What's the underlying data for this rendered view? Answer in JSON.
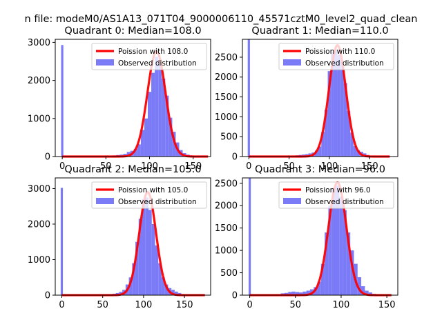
{
  "figure": {
    "suptitle": "n file: modeM0/AS1A13_071T04_9000006110_45571cztM0_level2_quad_clean"
  },
  "colors": {
    "histogram": "#7b7bf7",
    "poisson": "#ff0000"
  },
  "chart_data": [
    {
      "type": "bar",
      "title": "Quadrant 0: Median=108.0",
      "median": 108,
      "xlim": [
        -8,
        170
      ],
      "ylim": [
        0,
        3080
      ],
      "xticks": [
        0,
        50,
        100,
        150
      ],
      "yticks": [
        0,
        1000,
        2000,
        3000
      ],
      "zero_bin_count": 2930,
      "bin_width": 4,
      "bins": [
        {
          "x": 60,
          "y": 30
        },
        {
          "x": 64,
          "y": 40
        },
        {
          "x": 68,
          "y": 50
        },
        {
          "x": 72,
          "y": 70
        },
        {
          "x": 76,
          "y": 120
        },
        {
          "x": 80,
          "y": 150
        },
        {
          "x": 84,
          "y": 200
        },
        {
          "x": 88,
          "y": 320
        },
        {
          "x": 92,
          "y": 700
        },
        {
          "x": 96,
          "y": 1000
        },
        {
          "x": 100,
          "y": 1700
        },
        {
          "x": 104,
          "y": 2200
        },
        {
          "x": 108,
          "y": 2620
        },
        {
          "x": 112,
          "y": 2420
        },
        {
          "x": 116,
          "y": 2050
        },
        {
          "x": 120,
          "y": 1600
        },
        {
          "x": 124,
          "y": 1020
        },
        {
          "x": 128,
          "y": 650
        },
        {
          "x": 132,
          "y": 370
        },
        {
          "x": 136,
          "y": 170
        },
        {
          "x": 140,
          "y": 90
        },
        {
          "x": 144,
          "y": 50
        },
        {
          "x": 148,
          "y": 30
        },
        {
          "x": 152,
          "y": 20
        }
      ],
      "poisson_peak": 2760,
      "poisson_range": [
        0,
        167
      ],
      "legend": [
        "Poission with 108.0",
        "Observed distribution"
      ]
    },
    {
      "type": "bar",
      "title": "Quadrant 1: Median=110.0",
      "median": 110,
      "xlim": [
        -8,
        185
      ],
      "ylim": [
        0,
        2950
      ],
      "xticks": [
        0,
        50,
        100,
        150
      ],
      "yticks": [
        0,
        500,
        1000,
        1500,
        2000,
        2500
      ],
      "zero_bin_count": 2950,
      "bin_width": 4,
      "bins": [
        {
          "x": 56,
          "y": 20
        },
        {
          "x": 60,
          "y": 30
        },
        {
          "x": 64,
          "y": 40
        },
        {
          "x": 68,
          "y": 50
        },
        {
          "x": 72,
          "y": 60
        },
        {
          "x": 76,
          "y": 80
        },
        {
          "x": 80,
          "y": 100
        },
        {
          "x": 84,
          "y": 150
        },
        {
          "x": 88,
          "y": 250
        },
        {
          "x": 92,
          "y": 620
        },
        {
          "x": 96,
          "y": 1180
        },
        {
          "x": 100,
          "y": 2150
        },
        {
          "x": 104,
          "y": 2620
        },
        {
          "x": 108,
          "y": 2700
        },
        {
          "x": 112,
          "y": 2560
        },
        {
          "x": 116,
          "y": 2400
        },
        {
          "x": 120,
          "y": 1850
        },
        {
          "x": 124,
          "y": 1150
        },
        {
          "x": 128,
          "y": 600
        },
        {
          "x": 132,
          "y": 260
        },
        {
          "x": 136,
          "y": 160
        },
        {
          "x": 140,
          "y": 120
        },
        {
          "x": 144,
          "y": 80
        },
        {
          "x": 148,
          "y": 40
        },
        {
          "x": 152,
          "y": 20
        }
      ],
      "poisson_peak": 2800,
      "poisson_range": [
        0,
        175
      ],
      "legend": [
        "Poission with 110.0",
        "Observed distribution"
      ]
    },
    {
      "type": "bar",
      "title": "Quadrant 2: Median=105.0",
      "median": 105,
      "xlim": [
        -8,
        182
      ],
      "ylim": [
        0,
        3300
      ],
      "xticks": [
        0,
        50,
        100,
        150
      ],
      "yticks": [
        0,
        1000,
        2000,
        3000
      ],
      "zero_bin_count": 3020,
      "bin_width": 4,
      "bins": [
        {
          "x": 56,
          "y": 20
        },
        {
          "x": 60,
          "y": 30
        },
        {
          "x": 64,
          "y": 40
        },
        {
          "x": 68,
          "y": 60
        },
        {
          "x": 72,
          "y": 90
        },
        {
          "x": 76,
          "y": 150
        },
        {
          "x": 80,
          "y": 300
        },
        {
          "x": 84,
          "y": 500
        },
        {
          "x": 88,
          "y": 900
        },
        {
          "x": 92,
          "y": 1500
        },
        {
          "x": 96,
          "y": 2150
        },
        {
          "x": 100,
          "y": 2700
        },
        {
          "x": 104,
          "y": 2750
        },
        {
          "x": 108,
          "y": 2400
        },
        {
          "x": 112,
          "y": 2000
        },
        {
          "x": 116,
          "y": 1400
        },
        {
          "x": 120,
          "y": 900
        },
        {
          "x": 124,
          "y": 500
        },
        {
          "x": 128,
          "y": 300
        },
        {
          "x": 132,
          "y": 200
        },
        {
          "x": 136,
          "y": 150
        },
        {
          "x": 140,
          "y": 100
        },
        {
          "x": 144,
          "y": 60
        },
        {
          "x": 148,
          "y": 30
        }
      ],
      "poisson_peak": 2900,
      "poisson_range": [
        0,
        175
      ],
      "legend": [
        "Poission with 105.0",
        "Observed distribution"
      ]
    },
    {
      "type": "bar",
      "title": "Quadrant 3: Median=96.0",
      "median": 96,
      "xlim": [
        -8,
        162
      ],
      "ylim": [
        0,
        2620
      ],
      "xticks": [
        0,
        50,
        100,
        150
      ],
      "yticks": [
        0,
        500,
        1000,
        1500,
        2000,
        2500
      ],
      "zero_bin_count": 2620,
      "bin_width": 4,
      "bins": [
        {
          "x": 36,
          "y": 40
        },
        {
          "x": 40,
          "y": 50
        },
        {
          "x": 44,
          "y": 70
        },
        {
          "x": 48,
          "y": 80
        },
        {
          "x": 52,
          "y": 70
        },
        {
          "x": 56,
          "y": 60
        },
        {
          "x": 60,
          "y": 80
        },
        {
          "x": 64,
          "y": 100
        },
        {
          "x": 68,
          "y": 130
        },
        {
          "x": 72,
          "y": 180
        },
        {
          "x": 76,
          "y": 300
        },
        {
          "x": 80,
          "y": 700
        },
        {
          "x": 84,
          "y": 1400
        },
        {
          "x": 88,
          "y": 2000
        },
        {
          "x": 92,
          "y": 2380
        },
        {
          "x": 96,
          "y": 2450
        },
        {
          "x": 100,
          "y": 2200
        },
        {
          "x": 104,
          "y": 1900
        },
        {
          "x": 108,
          "y": 1400
        },
        {
          "x": 112,
          "y": 1000
        },
        {
          "x": 116,
          "y": 700
        },
        {
          "x": 120,
          "y": 400
        },
        {
          "x": 124,
          "y": 200
        },
        {
          "x": 128,
          "y": 100
        },
        {
          "x": 132,
          "y": 60
        },
        {
          "x": 136,
          "y": 30
        }
      ],
      "poisson_peak": 2520,
      "poisson_range": [
        0,
        155
      ],
      "legend": [
        "Poission with 96.0",
        "Observed distribution"
      ]
    }
  ]
}
